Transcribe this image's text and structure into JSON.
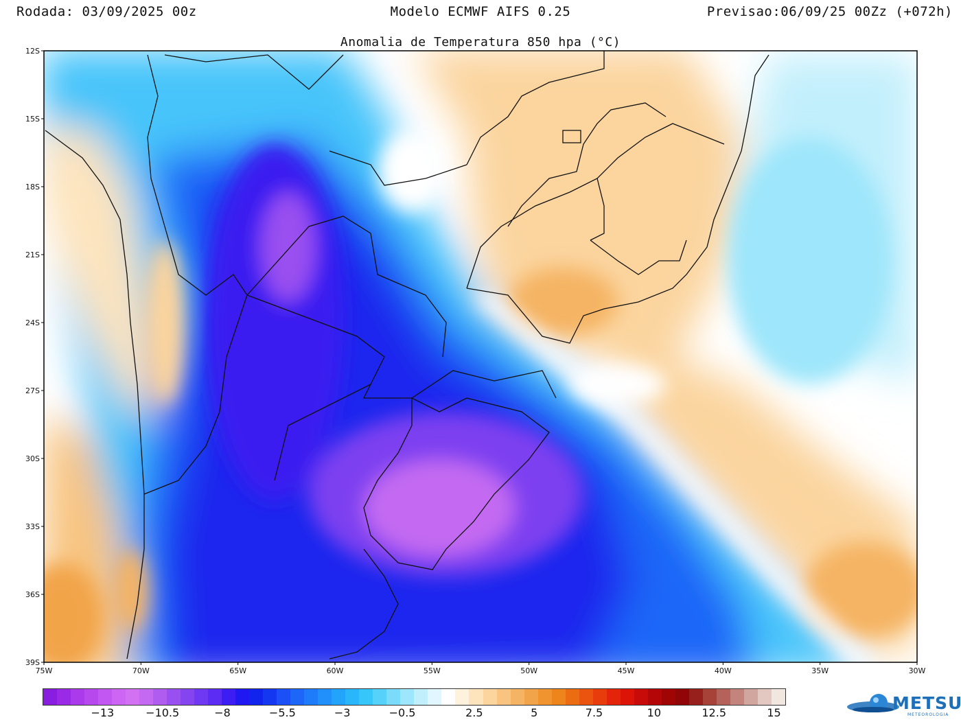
{
  "header": {
    "run": "Rodada: 03/09/2025 00z",
    "model": "Modelo ECMWF AIFS 0.25",
    "forecast": "Previsao:06/09/25 00Zz (+072h)"
  },
  "title": "Anomalia de Temperatura 850 hpa (°C)",
  "map": {
    "lat_labels": [
      "12S",
      "15S",
      "18S",
      "21S",
      "24S",
      "27S",
      "30S",
      "33S",
      "36S",
      "39S"
    ],
    "lon_labels": [
      "75W",
      "70W",
      "65W",
      "60W",
      "55W",
      "50W",
      "45W",
      "40W",
      "35W",
      "30W"
    ],
    "extent": {
      "lon": [
        -75,
        -30
      ],
      "lat": [
        -39,
        -12
      ]
    },
    "anomaly_features": [
      {
        "label": "cold-core-rs-uruguay",
        "lon": -54.5,
        "lat": -31.5,
        "value": -12
      },
      {
        "label": "cold-core-paraguay-bolivia",
        "lon": -62.3,
        "lat": -21.5,
        "value": -11
      },
      {
        "label": "warm-core-sao-paulo",
        "lon": -47.5,
        "lat": -22.8,
        "value": 3
      },
      {
        "label": "warm-south-atlantic",
        "lon": -33.5,
        "lat": -35.5,
        "value": 3.5
      },
      {
        "label": "warm-chile-south",
        "lon": -73.5,
        "lat": -37.5,
        "value": 3.5
      }
    ]
  },
  "colorbar": {
    "colors": [
      "#8a1ee0",
      "#9a2ae6",
      "#aa3aea",
      "#b648ee",
      "#c258f0",
      "#cd66f2",
      "#d272f2",
      "#c46af2",
      "#b05cf0",
      "#9850f0",
      "#8444f0",
      "#6f38f2",
      "#5a2cf4",
      "#3c1ef4",
      "#2018f2",
      "#1024ee",
      "#1438f2",
      "#1a50f6",
      "#1c66f8",
      "#1e7cfa",
      "#2090fa",
      "#22a4fa",
      "#2ab6fa",
      "#36c6fa",
      "#56d2fa",
      "#7adcfa",
      "#9ee6fb",
      "#c2effc",
      "#e2f7fd",
      "#ffffff",
      "#fff2dc",
      "#fde4bd",
      "#fbd49e",
      "#f8c480",
      "#f5b464",
      "#f2a44a",
      "#f09430",
      "#ee841c",
      "#ec6c12",
      "#ea540e",
      "#e83c0c",
      "#e4240a",
      "#dc1408",
      "#c80a08",
      "#b40606",
      "#a00404",
      "#900606",
      "#98201c",
      "#a64238",
      "#b4625a",
      "#c2847c",
      "#d0a69e",
      "#e2c8c0",
      "#f2e6e0"
    ],
    "labels": [
      "−13",
      "−10.5",
      "−8",
      "−5.5",
      "−3",
      "−0.5",
      "2.5",
      "5",
      "7.5",
      "10",
      "12.5",
      "15"
    ],
    "label_values": [
      -13,
      -10.5,
      -8,
      -5.5,
      -3,
      -0.5,
      2.5,
      5,
      7.5,
      10,
      12.5,
      15
    ]
  },
  "logo": {
    "text": "METSUL",
    "sub": "METEOROLOGIA"
  }
}
